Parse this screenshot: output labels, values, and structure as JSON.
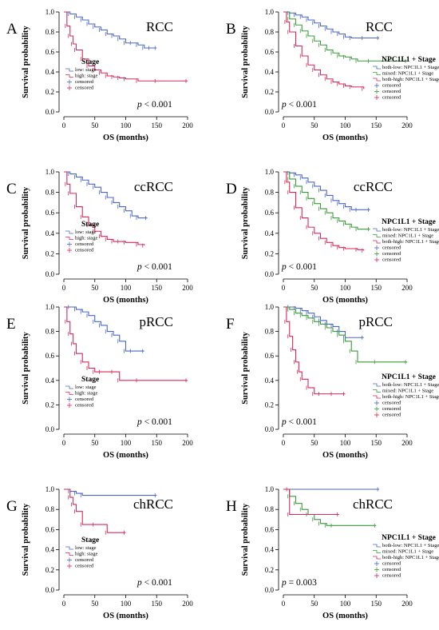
{
  "chart_data": [
    {
      "type": "line",
      "panel": "A",
      "title": "RCC",
      "xlabel": "OS (months)",
      "ylabel": "Survival probability",
      "xlim": [
        0,
        200
      ],
      "ylim": [
        0,
        1
      ],
      "xticks": [
        0,
        50,
        100,
        150,
        200
      ],
      "yticks": [
        0,
        0.2,
        0.4,
        0.6,
        0.8,
        1.0
      ],
      "legend_title": "Stage",
      "legend_placement": "bottom-left",
      "legend": [
        "low: stage",
        "high: stage",
        "censored",
        "censored"
      ],
      "pvalue": "< 0.001",
      "series": [
        {
          "name": "low: stage",
          "color": "#4a66c8",
          "x": [
            0,
            10,
            20,
            30,
            40,
            50,
            60,
            70,
            80,
            90,
            100,
            110,
            120,
            130,
            140,
            150
          ],
          "y": [
            1.0,
            0.98,
            0.95,
            0.92,
            0.88,
            0.85,
            0.82,
            0.78,
            0.76,
            0.73,
            0.69,
            0.69,
            0.67,
            0.64,
            0.64,
            0.64
          ]
        },
        {
          "name": "high: stage",
          "color": "#d8285a",
          "x": [
            0,
            5,
            10,
            15,
            20,
            30,
            40,
            50,
            60,
            70,
            80,
            90,
            100,
            120,
            150,
            200
          ],
          "y": [
            1.0,
            0.86,
            0.76,
            0.68,
            0.62,
            0.53,
            0.46,
            0.42,
            0.39,
            0.36,
            0.35,
            0.34,
            0.33,
            0.31,
            0.31,
            0.31
          ]
        }
      ]
    },
    {
      "type": "line",
      "panel": "B",
      "title": "RCC",
      "xlabel": "OS (months)",
      "ylabel": "Survival probability",
      "xlim": [
        0,
        200
      ],
      "ylim": [
        0,
        1
      ],
      "xticks": [
        0,
        50,
        100,
        150,
        200
      ],
      "yticks": [
        0,
        0.2,
        0.4,
        0.6,
        0.8,
        1.0
      ],
      "legend_title": "NPC1L1 + Stage",
      "legend_placement": "bottom-right",
      "legend": [
        "both-low: NPC1L1 + Stage",
        "mixed: NPC1L1 + Stage",
        "both-high: NPC1L1 + Stage",
        "censored",
        "censored",
        "censored"
      ],
      "pvalue": "< 0.001",
      "series": [
        {
          "name": "both-low: NPC1L1 + Stage",
          "color": "#4a66c8",
          "x": [
            0,
            10,
            20,
            30,
            40,
            50,
            60,
            70,
            80,
            90,
            100,
            110,
            130,
            155
          ],
          "y": [
            1.0,
            0.99,
            0.97,
            0.95,
            0.92,
            0.89,
            0.86,
            0.83,
            0.8,
            0.78,
            0.75,
            0.74,
            0.74,
            0.74
          ]
        },
        {
          "name": "mixed: NPC1L1 + Stage",
          "color": "#3a9a3a",
          "x": [
            0,
            10,
            20,
            30,
            40,
            50,
            60,
            70,
            80,
            90,
            100,
            110,
            120,
            140,
            200
          ],
          "y": [
            1.0,
            0.93,
            0.87,
            0.81,
            0.76,
            0.71,
            0.67,
            0.62,
            0.59,
            0.56,
            0.55,
            0.53,
            0.51,
            0.51,
            0.51
          ]
        },
        {
          "name": "both-high: NPC1L1 + Stage",
          "color": "#d8285a",
          "x": [
            0,
            5,
            10,
            20,
            30,
            40,
            50,
            60,
            70,
            80,
            90,
            100,
            110,
            130
          ],
          "y": [
            1.0,
            0.9,
            0.8,
            0.66,
            0.56,
            0.47,
            0.42,
            0.37,
            0.33,
            0.3,
            0.28,
            0.26,
            0.25,
            0.23
          ]
        }
      ]
    },
    {
      "type": "line",
      "panel": "C",
      "title": "ccRCC",
      "xlabel": "OS (months)",
      "ylabel": "Survival probability",
      "xlim": [
        0,
        200
      ],
      "ylim": [
        0,
        1
      ],
      "xticks": [
        0,
        50,
        100,
        150,
        200
      ],
      "yticks": [
        0,
        0.2,
        0.4,
        0.6,
        0.8,
        1.0
      ],
      "legend_title": "Stage",
      "legend_placement": "bottom-left",
      "legend": [
        "low: stage",
        "high: stage",
        "censored",
        "censored"
      ],
      "pvalue": "< 0.001",
      "series": [
        {
          "name": "low: stage",
          "color": "#4a66c8",
          "x": [
            0,
            10,
            20,
            30,
            40,
            50,
            60,
            70,
            80,
            90,
            100,
            110,
            120,
            135
          ],
          "y": [
            1.0,
            0.98,
            0.95,
            0.92,
            0.88,
            0.85,
            0.8,
            0.75,
            0.7,
            0.66,
            0.62,
            0.57,
            0.55,
            0.55
          ]
        },
        {
          "name": "high: stage",
          "color": "#d8285a",
          "x": [
            0,
            5,
            10,
            20,
            30,
            40,
            50,
            60,
            70,
            80,
            90,
            100,
            120,
            130
          ],
          "y": [
            1.0,
            0.88,
            0.79,
            0.66,
            0.56,
            0.48,
            0.42,
            0.37,
            0.34,
            0.32,
            0.32,
            0.31,
            0.29,
            0.28
          ]
        }
      ]
    },
    {
      "type": "line",
      "panel": "D",
      "title": "ccRCC",
      "xlabel": "OS (months)",
      "ylabel": "Survival probability",
      "xlim": [
        0,
        200
      ],
      "ylim": [
        0,
        1
      ],
      "xticks": [
        0,
        50,
        100,
        150,
        200
      ],
      "yticks": [
        0,
        0.2,
        0.4,
        0.6,
        0.8,
        1.0
      ],
      "legend_title": "NPC1L1 + Stage",
      "legend_placement": "bottom-right",
      "legend": [
        "both-low: NPC1L1 + Stage",
        "mixed: NPC1L1 + Stage",
        "both-high: NPC1L1 + Stage",
        "censored",
        "censored",
        "censored"
      ],
      "pvalue": "< 0.001",
      "series": [
        {
          "name": "both-low: NPC1L1 + Stage",
          "color": "#4a66c8",
          "x": [
            0,
            10,
            20,
            30,
            40,
            50,
            60,
            70,
            80,
            90,
            100,
            110,
            120,
            140
          ],
          "y": [
            1.0,
            0.99,
            0.97,
            0.94,
            0.9,
            0.86,
            0.82,
            0.77,
            0.72,
            0.69,
            0.66,
            0.63,
            0.63,
            0.63
          ]
        },
        {
          "name": "mixed: NPC1L1 + Stage",
          "color": "#3a9a3a",
          "x": [
            0,
            10,
            20,
            30,
            40,
            50,
            60,
            70,
            80,
            90,
            100,
            110,
            120,
            140
          ],
          "y": [
            1.0,
            0.93,
            0.86,
            0.8,
            0.74,
            0.69,
            0.64,
            0.6,
            0.55,
            0.52,
            0.49,
            0.46,
            0.44,
            0.44
          ]
        },
        {
          "name": "both-high: NPC1L1 + Stage",
          "color": "#d8285a",
          "x": [
            0,
            5,
            10,
            20,
            30,
            40,
            50,
            60,
            70,
            80,
            90,
            100,
            120,
            130
          ],
          "y": [
            1.0,
            0.9,
            0.8,
            0.65,
            0.55,
            0.46,
            0.4,
            0.35,
            0.31,
            0.28,
            0.26,
            0.25,
            0.24,
            0.23
          ]
        }
      ]
    },
    {
      "type": "line",
      "panel": "E",
      "title": "pRCC",
      "xlabel": "OS (months)",
      "ylabel": "Survival probability",
      "xlim": [
        0,
        200
      ],
      "ylim": [
        0,
        1
      ],
      "xticks": [
        0,
        50,
        100,
        150,
        200
      ],
      "yticks": [
        0,
        0.2,
        0.4,
        0.6,
        0.8,
        1.0
      ],
      "legend_title": "Stage",
      "legend_placement": "bottom-left",
      "legend": [
        "low: stage",
        "high: stage",
        "censored",
        "censored"
      ],
      "pvalue": "< 0.001",
      "series": [
        {
          "name": "low: stage",
          "color": "#4a66c8",
          "x": [
            0,
            10,
            20,
            30,
            40,
            50,
            60,
            70,
            80,
            90,
            100,
            110,
            130
          ],
          "y": [
            1.0,
            1.0,
            0.98,
            0.96,
            0.93,
            0.88,
            0.85,
            0.8,
            0.77,
            0.72,
            0.64,
            0.64,
            0.64
          ]
        },
        {
          "name": "high: stage",
          "color": "#d8285a",
          "x": [
            0,
            5,
            10,
            15,
            20,
            30,
            40,
            50,
            60,
            80,
            90,
            120,
            200
          ],
          "y": [
            1.0,
            0.88,
            0.78,
            0.7,
            0.62,
            0.55,
            0.5,
            0.47,
            0.47,
            0.47,
            0.4,
            0.4,
            0.4
          ]
        }
      ]
    },
    {
      "type": "line",
      "panel": "F",
      "title": "pRCC",
      "xlabel": "OS (months)",
      "ylabel": "Survival probability",
      "xlim": [
        0,
        200
      ],
      "ylim": [
        0,
        1
      ],
      "xticks": [
        0,
        50,
        100,
        150,
        200
      ],
      "yticks": [
        0,
        0.2,
        0.4,
        0.6,
        0.8,
        1.0
      ],
      "legend_title": "NPC1L1 + Stage",
      "legend_placement": "bottom-right",
      "legend": [
        "both-low: NPC1L1 + Stage",
        "mixed: NPC1L1 + Stage",
        "both-high: NPC1L1 + Stage",
        "censored",
        "censored",
        "censored"
      ],
      "pvalue": "< 0.001",
      "series": [
        {
          "name": "both-low: NPC1L1 + Stage",
          "color": "#4a66c8",
          "x": [
            0,
            10,
            20,
            30,
            40,
            50,
            60,
            70,
            80,
            90,
            100,
            130
          ],
          "y": [
            1.0,
            1.0,
            0.99,
            0.97,
            0.95,
            0.92,
            0.89,
            0.86,
            0.84,
            0.8,
            0.75,
            0.75
          ]
        },
        {
          "name": "mixed: NPC1L1 + Stage",
          "color": "#3a9a3a",
          "x": [
            0,
            10,
            20,
            30,
            40,
            50,
            60,
            70,
            80,
            90,
            100,
            110,
            120,
            150,
            200
          ],
          "y": [
            1.0,
            0.98,
            0.95,
            0.93,
            0.91,
            0.88,
            0.86,
            0.83,
            0.8,
            0.77,
            0.72,
            0.64,
            0.55,
            0.55,
            0.55
          ]
        },
        {
          "name": "both-high: NPC1L1 + Stage",
          "color": "#d8285a",
          "x": [
            0,
            5,
            10,
            15,
            20,
            25,
            30,
            40,
            50,
            60,
            80,
            100
          ],
          "y": [
            1.0,
            0.88,
            0.76,
            0.65,
            0.55,
            0.47,
            0.41,
            0.34,
            0.29,
            0.29,
            0.29,
            0.29
          ]
        }
      ]
    },
    {
      "type": "line",
      "panel": "G",
      "title": "chRCC",
      "xlabel": "OS (months)",
      "ylabel": "Survival probability",
      "xlim": [
        0,
        200
      ],
      "ylim": [
        0,
        1
      ],
      "xticks": [
        0,
        50,
        100,
        150,
        200
      ],
      "yticks": [
        0,
        0.2,
        0.4,
        0.6,
        0.8,
        1.0
      ],
      "legend_title": "Stage",
      "legend_placement": "bottom-left",
      "legend": [
        "low: stage",
        "high: stage",
        "censored",
        "censored"
      ],
      "pvalue": "< 0.001",
      "series": [
        {
          "name": "low: stage",
          "color": "#4a66c8",
          "x": [
            0,
            10,
            20,
            30,
            150
          ],
          "y": [
            1.0,
            0.98,
            0.96,
            0.94,
            0.94
          ]
        },
        {
          "name": "high: stage",
          "color": "#d8285a",
          "x": [
            0,
            10,
            15,
            20,
            30,
            50,
            70,
            100
          ],
          "y": [
            1.0,
            0.92,
            0.85,
            0.78,
            0.65,
            0.65,
            0.57,
            0.57
          ]
        }
      ]
    },
    {
      "type": "line",
      "panel": "H",
      "title": "chRCC",
      "xlabel": "OS (months)",
      "ylabel": "Survival probability",
      "xlim": [
        0,
        200
      ],
      "ylim": [
        0,
        1
      ],
      "xticks": [
        0,
        50,
        100,
        150,
        200
      ],
      "yticks": [
        0,
        0.2,
        0.4,
        0.6,
        0.8,
        1.0
      ],
      "legend_title": "NPC1L1 + Stage",
      "legend_placement": "bottom-right",
      "legend": [
        "both-low: NPC1L1 + Stage",
        "mixed: NPC1L1 + Stage",
        "both-high: NPC1L1 + Stage",
        "censored",
        "censored",
        "censored"
      ],
      "pvalue": "= 0.003",
      "series": [
        {
          "name": "both-low: NPC1L1 + Stage",
          "color": "#4a66c8",
          "x": [
            0,
            155
          ],
          "y": [
            1.0,
            1.0
          ]
        },
        {
          "name": "mixed: NPC1L1 + Stage",
          "color": "#3a9a3a",
          "x": [
            0,
            10,
            20,
            30,
            40,
            50,
            60,
            70,
            80,
            150
          ],
          "y": [
            1.0,
            0.93,
            0.86,
            0.8,
            0.75,
            0.7,
            0.66,
            0.64,
            0.64,
            0.64
          ]
        },
        {
          "name": "both-high: NPC1L1 + Stage",
          "color": "#d8285a",
          "x": [
            0,
            8,
            10,
            90
          ],
          "y": [
            1.0,
            1.0,
            0.75,
            0.75
          ]
        }
      ]
    }
  ]
}
